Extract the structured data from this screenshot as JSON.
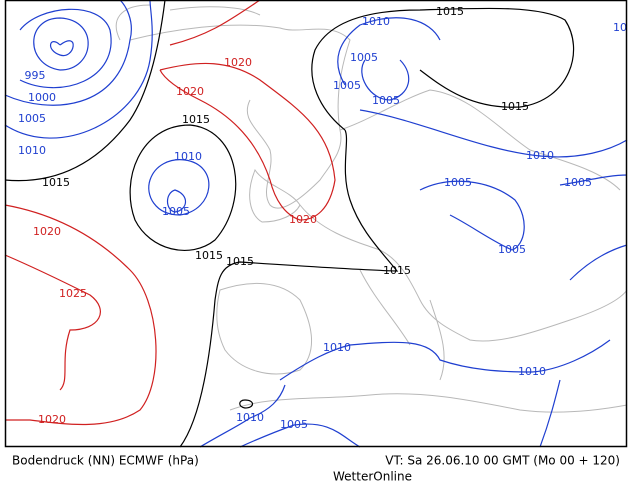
{
  "map": {
    "isobar_labels": [
      "1015",
      "1010",
      "1005",
      "1005",
      "1005",
      "1015",
      "1010",
      "1005",
      "1005",
      "1005",
      "1020",
      "1020",
      "995",
      "1000",
      "1005",
      "1010",
      "1015",
      "1010",
      "1005",
      "1015",
      "1020",
      "1020",
      "1015",
      "1015",
      "1015",
      "1025",
      "1010",
      "1010",
      "1010",
      "1005",
      "1020",
      "10"
    ]
  },
  "footer": {
    "product": "Bodendruck (NN) ECMWF (hPa)",
    "valid_time": "VT: Sa 26.06.10 00 GMT (Mo 00 + 120)",
    "credit": "WetterOnline"
  }
}
